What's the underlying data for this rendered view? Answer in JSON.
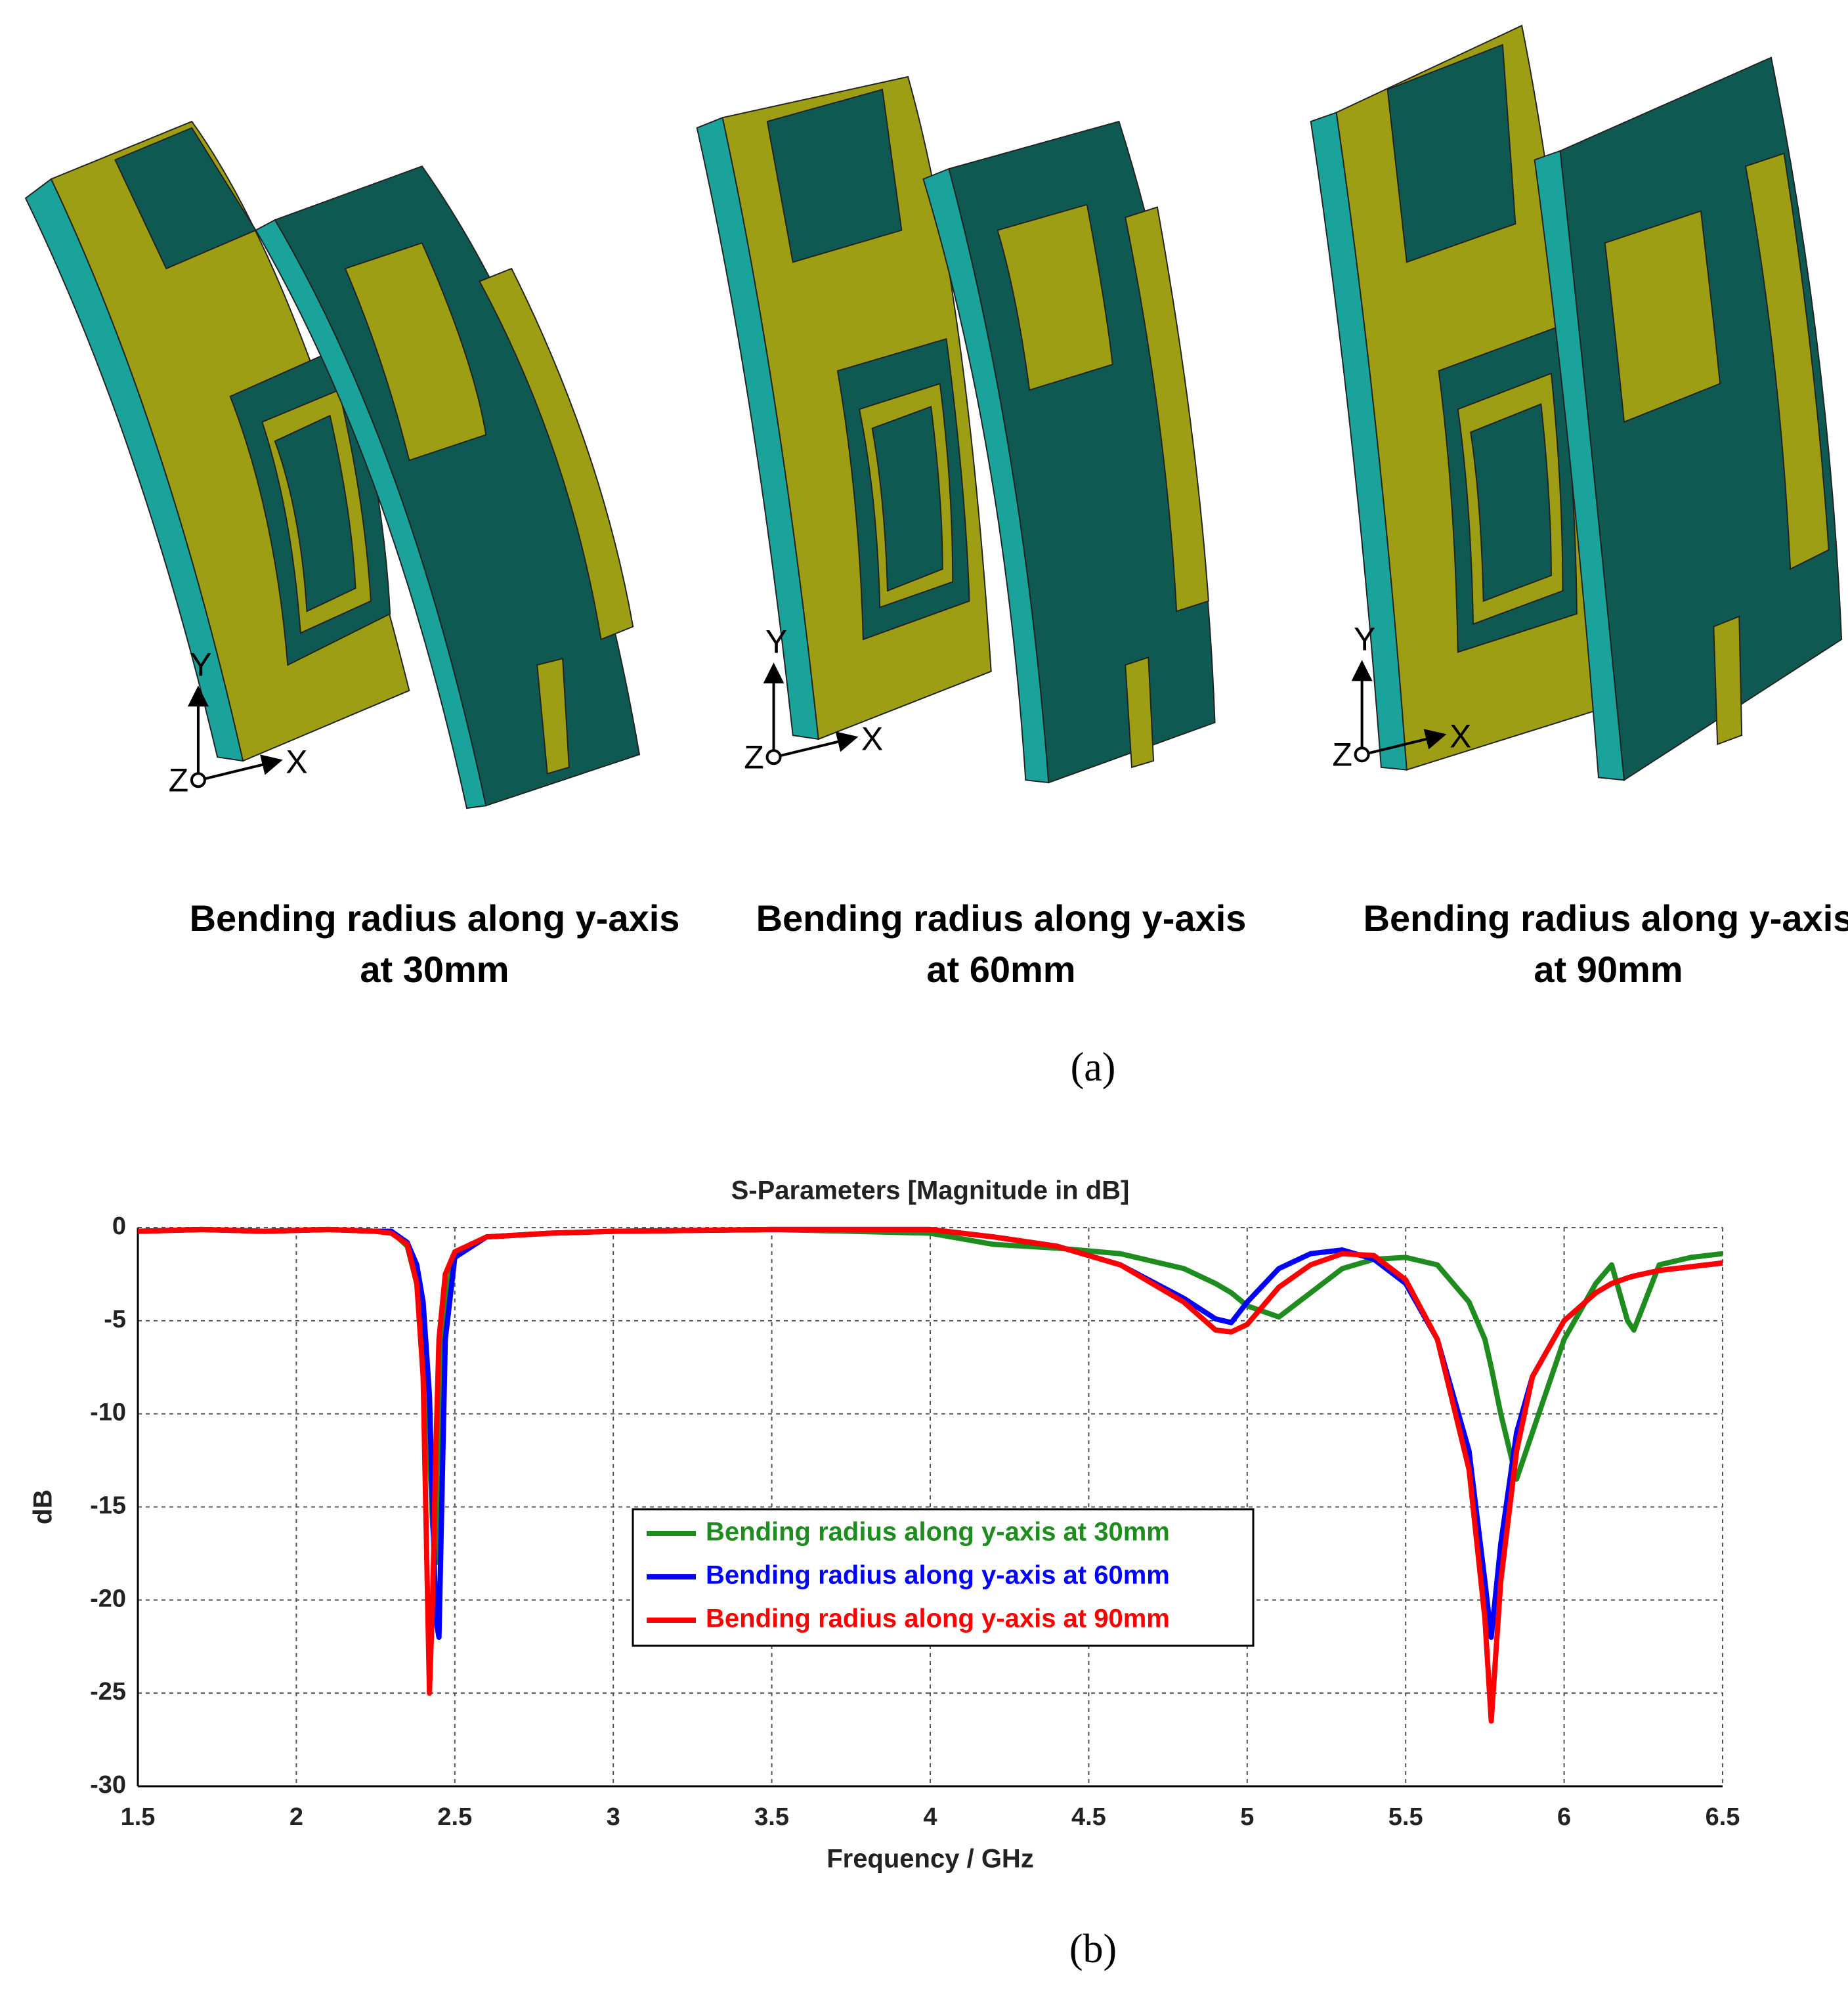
{
  "panel_a": {
    "label": "(a)",
    "figures": [
      {
        "caption": "Bending radius along y-axis at 30mm",
        "axes": {
          "x": "X",
          "y": "Y",
          "z": "Z"
        }
      },
      {
        "caption": "Bending radius along y-axis at 60mm",
        "axes": {
          "x": "X",
          "y": "Y",
          "z": "Z"
        }
      },
      {
        "caption": "Bending radius along y-axis at 90mm",
        "axes": {
          "x": "X",
          "y": "Y",
          "z": "Z"
        }
      }
    ]
  },
  "panel_b": {
    "label": "(b)"
  },
  "chart_data": {
    "type": "line",
    "title": "S-Parameters [Magnitude in dB]",
    "x_label": "Frequency / GHz",
    "y_label": "dB",
    "xlim": [
      1.5,
      6.5
    ],
    "xticks": [
      1.5,
      2,
      2.5,
      3,
      3.5,
      4,
      4.5,
      5,
      5.5,
      6,
      6.5
    ],
    "ylim": [
      -30,
      0
    ],
    "yticks": [
      0,
      -5,
      -10,
      -15,
      -20,
      -25,
      -30
    ],
    "grid": true,
    "x": [
      1.5,
      1.7,
      1.9,
      2.1,
      2.25,
      2.3,
      2.35,
      2.38,
      2.4,
      2.42,
      2.43,
      2.44,
      2.45,
      2.47,
      2.5,
      2.6,
      2.8,
      3,
      3.5,
      4,
      4.2,
      4.4,
      4.6,
      4.8,
      4.9,
      4.95,
      5.0,
      5.1,
      5.2,
      5.3,
      5.4,
      5.5,
      5.6,
      5.7,
      5.75,
      5.77,
      5.8,
      5.85,
      5.9,
      6.0,
      6.1,
      6.15,
      6.2,
      6.22,
      6.3,
      6.4,
      6.5
    ],
    "series": [
      {
        "name": "Bending radius along y-axis at 30mm",
        "color": "#1e8c1e",
        "values": [
          -0.2,
          -0.1,
          -0.2,
          -0.1,
          -0.2,
          -0.2,
          -1,
          -3,
          -6,
          -12,
          -16,
          -18,
          -12,
          -4,
          -1.5,
          -0.5,
          -0.3,
          -0.2,
          -0.1,
          -0.3,
          -0.9,
          -1.1,
          -1.4,
          -2.2,
          -3,
          -3.5,
          -4.2,
          -4.8,
          -3.5,
          -2.2,
          -1.7,
          -1.6,
          -2,
          -4,
          -6,
          -7.5,
          -10,
          -13.5,
          -11,
          -6,
          -3,
          -2,
          -5,
          -5.5,
          -2,
          -1.6,
          -1.4
        ]
      },
      {
        "name": "Bending radius along y-axis at 60mm",
        "color": "#0000ff",
        "values": [
          -0.2,
          -0.1,
          -0.2,
          -0.1,
          -0.2,
          -0.2,
          -0.8,
          -2,
          -4,
          -9,
          -15,
          -21,
          -22,
          -6,
          -1.6,
          -0.5,
          -0.3,
          -0.2,
          -0.1,
          -0.1,
          -0.5,
          -1,
          -2,
          -3.8,
          -4.9,
          -5.1,
          -4,
          -2.2,
          -1.4,
          -1.2,
          -1.7,
          -3,
          -6,
          -12,
          -19,
          -22,
          -17,
          -11,
          -8,
          -5,
          -3.5,
          -3,
          -2.7,
          -2.6,
          -2.3,
          -2.1,
          -1.9
        ]
      },
      {
        "name": "Bending radius along y-axis at 90mm",
        "color": "#ff0000",
        "values": [
          -0.2,
          -0.1,
          -0.2,
          -0.1,
          -0.2,
          -0.3,
          -0.9,
          -3,
          -8,
          -25,
          -20,
          -12,
          -6,
          -2.5,
          -1.3,
          -0.5,
          -0.3,
          -0.2,
          -0.1,
          -0.1,
          -0.5,
          -1,
          -2,
          -4,
          -5.5,
          -5.6,
          -5.2,
          -3.2,
          -2,
          -1.4,
          -1.5,
          -2.8,
          -6,
          -13,
          -21,
          -26.5,
          -19,
          -12,
          -8,
          -5,
          -3.5,
          -3,
          -2.7,
          -2.6,
          -2.3,
          -2.1,
          -1.9
        ]
      }
    ]
  }
}
